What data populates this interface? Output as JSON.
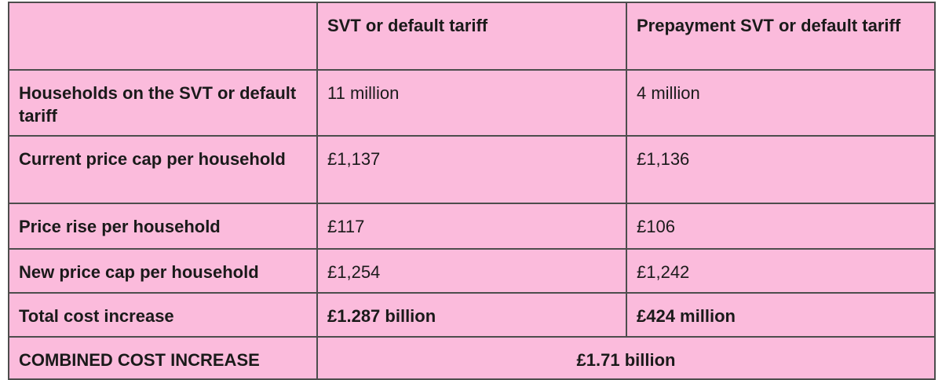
{
  "table": {
    "columns": [
      "SVT or default tariff",
      "Prepayment SVT or default tariff"
    ],
    "rows": [
      {
        "label": "Households on the SVT or default tariff",
        "values": [
          "11 million",
          "4 million"
        ]
      },
      {
        "label": "Current price cap per household",
        "values": [
          "£1,137",
          "£1,136"
        ]
      },
      {
        "label": "Price rise per household",
        "values": [
          "£117",
          "£106"
        ]
      },
      {
        "label": "New price cap per household",
        "values": [
          "£1,254",
          "£1,242"
        ]
      },
      {
        "label": "Total cost increase",
        "values": [
          "£1.287 billion",
          "£424 million"
        ]
      }
    ],
    "combined": {
      "label": "COMBINED COST INCREASE",
      "value": "£1.71 billion"
    }
  }
}
